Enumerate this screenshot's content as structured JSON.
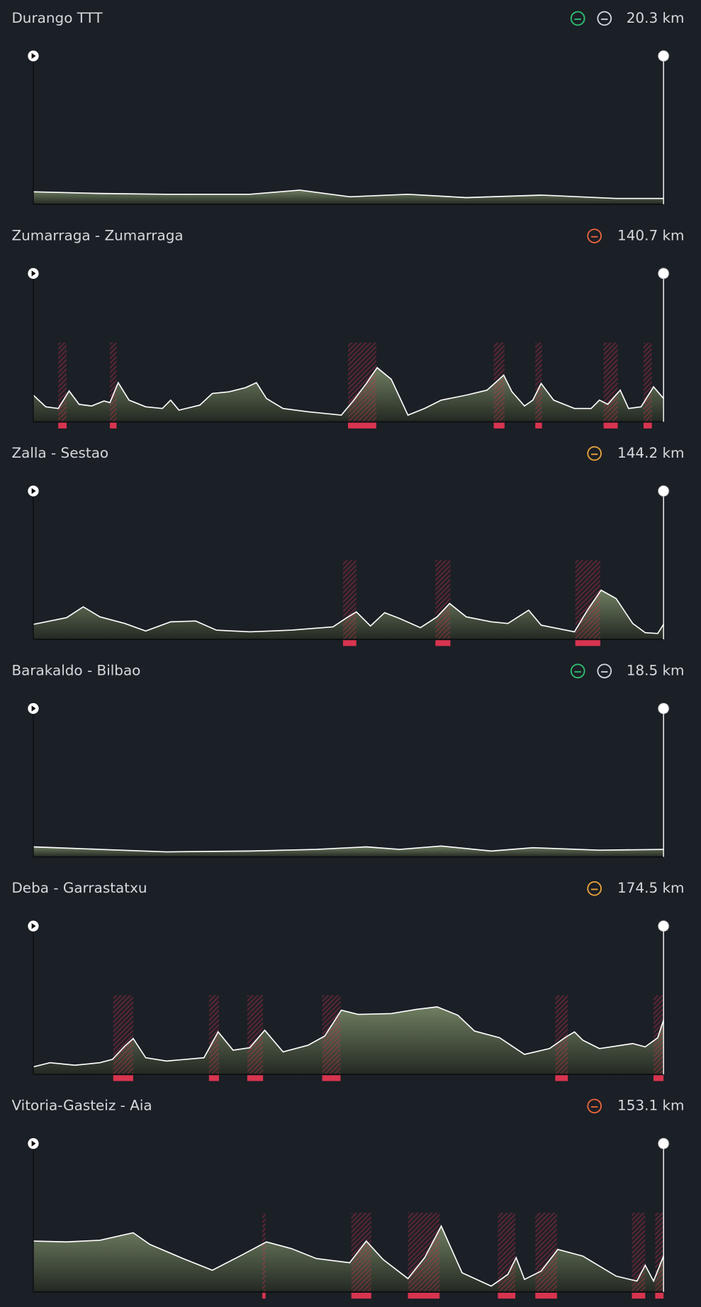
{
  "stages": [
    {
      "name": "Durango TTT",
      "distance": "20.3 km"
    },
    {
      "name": "Zumarraga - Zumarraga",
      "distance": "140.7 km"
    },
    {
      "name": "Zalla - Sestao",
      "distance": "144.2 km"
    },
    {
      "name": "Barakaldo - Bilbao",
      "distance": "18.5 km"
    },
    {
      "name": "Deba - Garrastatxu",
      "distance": "174.5 km"
    },
    {
      "name": "Vitoria-Gasteiz - Aia",
      "distance": "153.1 km"
    }
  ]
}
